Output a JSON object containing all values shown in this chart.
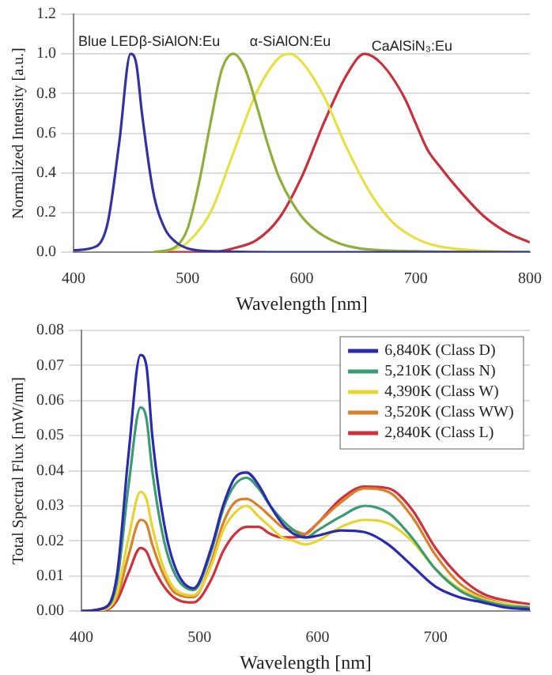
{
  "chart_data": [
    {
      "type": "line",
      "xlabel": "Wavelength [nm]",
      "ylabel": "Normalized Intensity [a.u.]",
      "xlim": [
        400,
        800
      ],
      "xticks": [
        400,
        500,
        600,
        700,
        800
      ],
      "ylim": [
        0,
        1.2
      ],
      "yticks": [
        {
          "value": 0,
          "label": "0.0"
        },
        {
          "value": 0.2,
          "label": "0.2"
        },
        {
          "value": 0.4,
          "label": "0.4"
        },
        {
          "value": 0.6,
          "label": "0.6"
        },
        {
          "value": 0.8,
          "label": "0.8"
        },
        {
          "value": 1,
          "label": "1.0"
        },
        {
          "value": 1.2,
          "label": "1.2"
        }
      ],
      "grid": "y",
      "legend": false,
      "marker": "none",
      "line_style": "solid",
      "series": [
        {
          "name": "Blue LED",
          "color": "#3333a0",
          "x": [
            400,
            420,
            430,
            440,
            450,
            455,
            460,
            470,
            480,
            490,
            500,
            520,
            600,
            800
          ],
          "values": [
            0.01,
            0.03,
            0.15,
            0.55,
            1.0,
            0.95,
            0.7,
            0.3,
            0.12,
            0.05,
            0.02,
            0.005,
            0,
            0
          ]
        },
        {
          "name": "β-SiAlON:Eu",
          "color": "#8fae3a",
          "x": [
            470,
            490,
            500,
            510,
            520,
            530,
            540,
            550,
            560,
            570,
            580,
            600,
            620,
            650,
            700,
            800
          ],
          "values": [
            0,
            0.03,
            0.12,
            0.35,
            0.65,
            0.92,
            1.0,
            0.93,
            0.75,
            0.55,
            0.38,
            0.18,
            0.08,
            0.02,
            0.005,
            0
          ]
        },
        {
          "name": "α-SiAlON:Eu",
          "color": "#e6e045",
          "x": [
            470,
            490,
            500,
            520,
            540,
            560,
            580,
            590,
            600,
            620,
            640,
            660,
            680,
            700,
            720,
            750,
            800
          ],
          "values": [
            0,
            0.02,
            0.05,
            0.2,
            0.5,
            0.8,
            0.98,
            1.0,
            0.96,
            0.78,
            0.52,
            0.3,
            0.15,
            0.07,
            0.03,
            0.01,
            0
          ]
        },
        {
          "name": "CaAlSiN₃:Eu",
          "color": "#c8303c",
          "x": [
            470,
            520,
            540,
            560,
            580,
            600,
            620,
            640,
            655,
            670,
            690,
            700,
            710,
            720,
            740,
            760,
            780,
            800
          ],
          "values": [
            0,
            0,
            0.02,
            0.06,
            0.17,
            0.38,
            0.66,
            0.9,
            1.0,
            0.95,
            0.78,
            0.65,
            0.52,
            0.44,
            0.3,
            0.18,
            0.1,
            0.05
          ]
        }
      ]
    },
    {
      "type": "line",
      "xlabel": "Wavelength [nm]",
      "ylabel": "Total Spectral Flux [mW/nm]",
      "xlim": [
        400,
        780
      ],
      "xticks": [
        400,
        500,
        600,
        700
      ],
      "ylim": [
        0,
        0.08
      ],
      "yticks": [
        {
          "value": 0,
          "label": "0.00"
        },
        {
          "value": 0.01,
          "label": "0.01"
        },
        {
          "value": 0.02,
          "label": "0.02"
        },
        {
          "value": 0.03,
          "label": "0.03"
        },
        {
          "value": 0.04,
          "label": "0.04"
        },
        {
          "value": 0.05,
          "label": "0.05"
        },
        {
          "value": 0.06,
          "label": "0.06"
        },
        {
          "value": 0.07,
          "label": "0.07"
        },
        {
          "value": 0.08,
          "label": "0.08"
        }
      ],
      "grid": "y",
      "legend": "top right",
      "marker": "none",
      "line_style": "solid",
      "series": [
        {
          "name": "6,840K (Class D)",
          "color": "#2a2ab0",
          "x": [
            400,
            420,
            430,
            440,
            450,
            455,
            460,
            470,
            480,
            495,
            510,
            520,
            530,
            540,
            550,
            560,
            570,
            580,
            590,
            600,
            620,
            640,
            660,
            680,
            700,
            720,
            740,
            760,
            780
          ],
          "values": [
            0,
            0.001,
            0.01,
            0.045,
            0.073,
            0.07,
            0.05,
            0.025,
            0.012,
            0.0065,
            0.018,
            0.03,
            0.038,
            0.0395,
            0.036,
            0.03,
            0.025,
            0.022,
            0.021,
            0.0215,
            0.023,
            0.0225,
            0.019,
            0.013,
            0.007,
            0.004,
            0.0025,
            0.001,
            0.0005
          ]
        },
        {
          "name": "5,210K (Class N)",
          "color": "#3a9a72",
          "x": [
            400,
            420,
            430,
            440,
            450,
            455,
            460,
            470,
            480,
            495,
            510,
            520,
            530,
            540,
            550,
            560,
            570,
            580,
            590,
            600,
            620,
            640,
            660,
            680,
            700,
            720,
            740,
            760,
            780
          ],
          "values": [
            0,
            0.001,
            0.008,
            0.036,
            0.058,
            0.055,
            0.04,
            0.02,
            0.01,
            0.006,
            0.017,
            0.029,
            0.036,
            0.038,
            0.035,
            0.03,
            0.026,
            0.023,
            0.021,
            0.023,
            0.027,
            0.03,
            0.028,
            0.021,
            0.012,
            0.006,
            0.003,
            0.0015,
            0.001
          ]
        },
        {
          "name": "4,390K (Class W)",
          "color": "#e8d430",
          "x": [
            400,
            420,
            430,
            440,
            450,
            455,
            460,
            470,
            480,
            495,
            510,
            520,
            530,
            540,
            550,
            560,
            570,
            580,
            590,
            600,
            620,
            640,
            660,
            680,
            700,
            720,
            740,
            760,
            780
          ],
          "values": [
            0,
            0.0005,
            0.005,
            0.021,
            0.034,
            0.032,
            0.024,
            0.012,
            0.006,
            0.0045,
            0.013,
            0.023,
            0.028,
            0.03,
            0.027,
            0.024,
            0.021,
            0.02,
            0.019,
            0.02,
            0.024,
            0.026,
            0.025,
            0.02,
            0.012,
            0.0065,
            0.0035,
            0.002,
            0.001
          ]
        },
        {
          "name": "3,520K (Class WW)",
          "color": "#d8802a",
          "x": [
            400,
            420,
            430,
            440,
            450,
            455,
            460,
            470,
            480,
            495,
            510,
            520,
            530,
            540,
            550,
            560,
            570,
            580,
            590,
            600,
            620,
            640,
            660,
            680,
            700,
            720,
            740,
            760,
            780
          ],
          "values": [
            0,
            0.0005,
            0.004,
            0.016,
            0.026,
            0.025,
            0.019,
            0.01,
            0.005,
            0.004,
            0.014,
            0.025,
            0.031,
            0.032,
            0.03,
            0.027,
            0.024,
            0.023,
            0.022,
            0.025,
            0.031,
            0.035,
            0.034,
            0.027,
            0.016,
            0.008,
            0.004,
            0.002,
            0.001
          ]
        },
        {
          "name": "2,840K (Class L)",
          "color": "#d0303a",
          "x": [
            400,
            420,
            430,
            440,
            450,
            455,
            460,
            470,
            480,
            495,
            510,
            520,
            530,
            540,
            550,
            560,
            570,
            580,
            590,
            600,
            620,
            640,
            660,
            680,
            700,
            720,
            740,
            760,
            780
          ],
          "values": [
            0,
            0.0003,
            0.003,
            0.011,
            0.018,
            0.017,
            0.013,
            0.007,
            0.0035,
            0.0025,
            0.009,
            0.017,
            0.022,
            0.024,
            0.024,
            0.022,
            0.021,
            0.021,
            0.022,
            0.025,
            0.032,
            0.0355,
            0.035,
            0.029,
            0.018,
            0.01,
            0.005,
            0.003,
            0.002
          ]
        }
      ]
    }
  ]
}
